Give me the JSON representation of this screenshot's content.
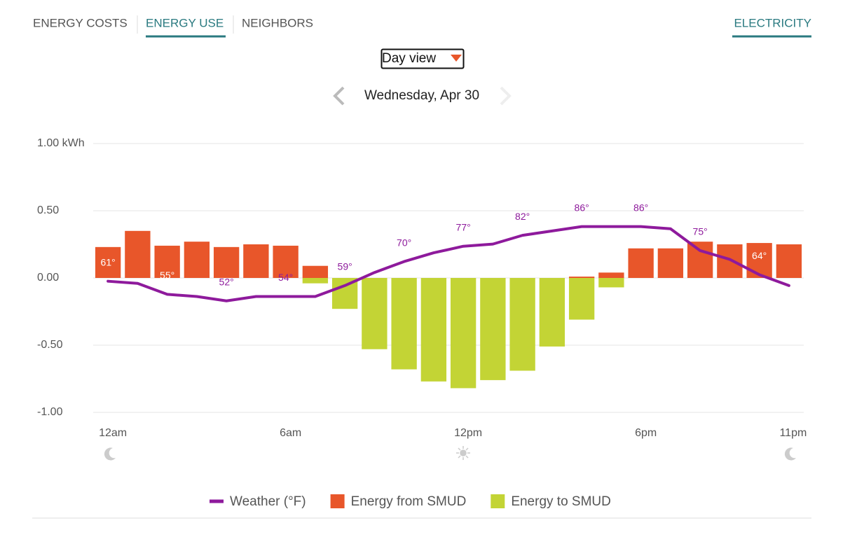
{
  "nav": {
    "tabs": [
      "ENERGY COSTS",
      "ENERGY USE",
      "NEIGHBORS"
    ],
    "active_tab": "ENERGY USE",
    "right_tab": "ELECTRICITY"
  },
  "view_select": "Day view",
  "date": "Wednesday, Apr 30",
  "chart_data": {
    "type": "bar",
    "categories": [
      "12am",
      null,
      null,
      null,
      null,
      null,
      "6am",
      null,
      null,
      null,
      null,
      null,
      "12pm",
      null,
      null,
      null,
      null,
      null,
      "6pm",
      null,
      null,
      null,
      null,
      "11pm"
    ],
    "ylim": [
      -1,
      1
    ],
    "yticks": [
      {
        "value": -1,
        "label": "-1.00"
      },
      {
        "value": -0.5,
        "label": "-0.50"
      },
      {
        "value": 0,
        "label": "0.00"
      },
      {
        "value": 0.5,
        "label": "0.50"
      },
      {
        "value": 1,
        "label": "1.00 kWh"
      }
    ],
    "y2lim": [
      1,
      124
    ],
    "grid": true,
    "series": [
      {
        "name": "Energy from SMUD",
        "color": "#e8562a",
        "values": [
          0.23,
          0.35,
          0.24,
          0.27,
          0.23,
          0.25,
          0.24,
          0.09,
          0,
          0,
          0,
          0,
          0,
          0,
          0,
          0,
          0.01,
          0.04,
          0.22,
          0.22,
          0.27,
          0.25,
          0.26,
          0.25
        ]
      },
      {
        "name": "Energy to SMUD",
        "color": "#c3d435",
        "values": [
          0,
          0,
          0,
          0,
          0,
          0,
          0,
          -0.04,
          -0.23,
          -0.53,
          -0.68,
          -0.77,
          -0.82,
          -0.76,
          -0.69,
          -0.51,
          -0.31,
          -0.07,
          0,
          0,
          0,
          0,
          0,
          0
        ]
      },
      {
        "name": "Weather (°F)",
        "type": "line",
        "axis": "y2",
        "color": "#8e1a9c",
        "values": [
          61,
          60,
          55,
          54,
          52,
          54,
          54,
          54,
          59,
          65,
          70,
          74,
          77,
          78,
          82,
          84,
          86,
          86,
          86,
          85,
          75,
          71,
          64,
          59
        ],
        "value_labels": [
          "61°",
          null,
          "55°",
          null,
          "52°",
          null,
          "54°",
          null,
          "59°",
          null,
          "70°",
          null,
          "77°",
          null,
          "82°",
          null,
          "86°",
          null,
          "86°",
          null,
          "75°",
          null,
          "64°",
          null
        ]
      }
    ]
  }
}
